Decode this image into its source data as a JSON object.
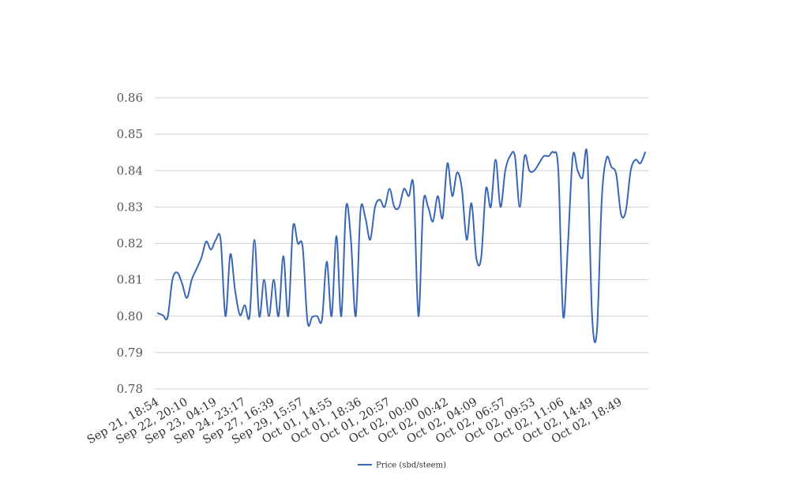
{
  "chart_data": {
    "type": "line",
    "title": "",
    "xlabel": "",
    "ylabel": "",
    "ylim": [
      0.78,
      0.86
    ],
    "y_ticks": [
      "0.78",
      "0.79",
      "0.80",
      "0.81",
      "0.82",
      "0.83",
      "0.84",
      "0.85",
      "0.86"
    ],
    "x_tick_labels": [
      "Sep 21, 18:54",
      "Sep 22, 20:10",
      "Sep 23, 04:19",
      "Sep 24, 23:17",
      "Sep 27, 16:39",
      "Sep 29, 15:57",
      "Oct 01, 14:55",
      "Oct 01, 18:36",
      "Oct 01, 20:57",
      "Oct 02, 00:00",
      "Oct 02, 00:42",
      "Oct 02, 04:09",
      "Oct 02, 06:57",
      "Oct 02, 09:53",
      "Oct 02, 11:06",
      "Oct 02, 14:49",
      "Oct 02, 18:49"
    ],
    "x_tick_every": 6,
    "grid": true,
    "legend_position": "bottom",
    "color": "#3a66b5",
    "series": [
      {
        "name": "Price (sbd/steem)",
        "values": [
          0.8008,
          0.8003,
          0.7997,
          0.81,
          0.812,
          0.809,
          0.805,
          0.81,
          0.813,
          0.816,
          0.8205,
          0.8183,
          0.821,
          0.821,
          0.8,
          0.817,
          0.807,
          0.8003,
          0.803,
          0.8,
          0.821,
          0.8,
          0.81,
          0.8,
          0.81,
          0.8,
          0.8165,
          0.8,
          0.8245,
          0.82,
          0.819,
          0.7985,
          0.7998,
          0.8,
          0.799,
          0.815,
          0.8,
          0.822,
          0.8,
          0.83,
          0.821,
          0.8,
          0.829,
          0.827,
          0.821,
          0.83,
          0.832,
          0.83,
          0.835,
          0.83,
          0.83,
          0.835,
          0.833,
          0.8355,
          0.8,
          0.831,
          0.83,
          0.826,
          0.833,
          0.827,
          0.842,
          0.833,
          0.8395,
          0.835,
          0.821,
          0.831,
          0.816,
          0.816,
          0.835,
          0.83,
          0.843,
          0.83,
          0.84,
          0.844,
          0.844,
          0.83,
          0.844,
          0.84,
          0.84,
          0.842,
          0.844,
          0.844,
          0.845,
          0.84,
          0.8,
          0.82,
          0.844,
          0.84,
          0.838,
          0.844,
          0.8,
          0.796,
          0.832,
          0.8435,
          0.841,
          0.839,
          0.828,
          0.829,
          0.84,
          0.843,
          0.842,
          0.845
        ]
      }
    ]
  }
}
